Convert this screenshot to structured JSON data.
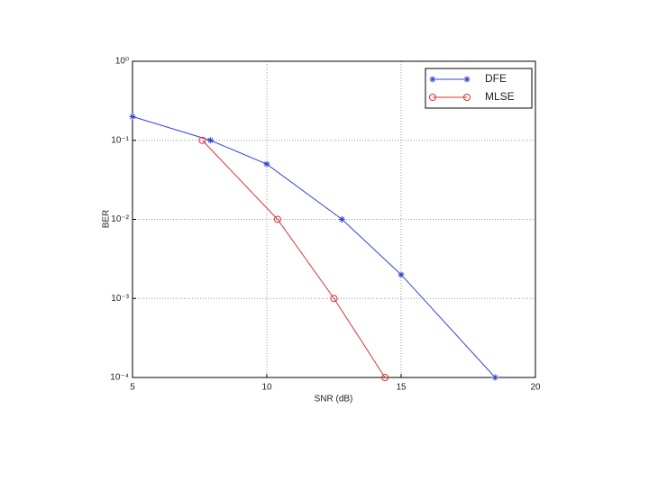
{
  "chart_data": {
    "type": "line",
    "x_label": "SNR (dB)",
    "y_label": "BER",
    "log_y": true,
    "grid": true,
    "legend": "upper right",
    "xlim": [
      5,
      20
    ],
    "xticks": [
      5,
      10,
      15,
      20
    ],
    "ylim": [
      0.0001,
      1
    ],
    "yticks": [
      {
        "value": 0.0001,
        "label": "10⁻⁴"
      },
      {
        "value": 0.001,
        "label": "10⁻³"
      },
      {
        "value": 0.01,
        "label": "10⁻²"
      },
      {
        "value": 0.1,
        "label": "10⁻¹"
      },
      {
        "value": 1,
        "label": "10⁰"
      }
    ],
    "series": [
      {
        "name": "DFE",
        "color": "#3344cc",
        "marker": "star",
        "x": [
          5,
          7.9,
          10,
          12.8,
          15,
          18.5
        ],
        "values": [
          0.2,
          0.1,
          0.05,
          0.01,
          0.002,
          0.0001
        ]
      },
      {
        "name": "MLSE",
        "color": "#dd3333",
        "marker": "circle",
        "x": [
          7.6,
          10.4,
          12.5,
          14.4
        ],
        "values": [
          0.1,
          0.01,
          0.001,
          0.0001
        ]
      }
    ]
  }
}
